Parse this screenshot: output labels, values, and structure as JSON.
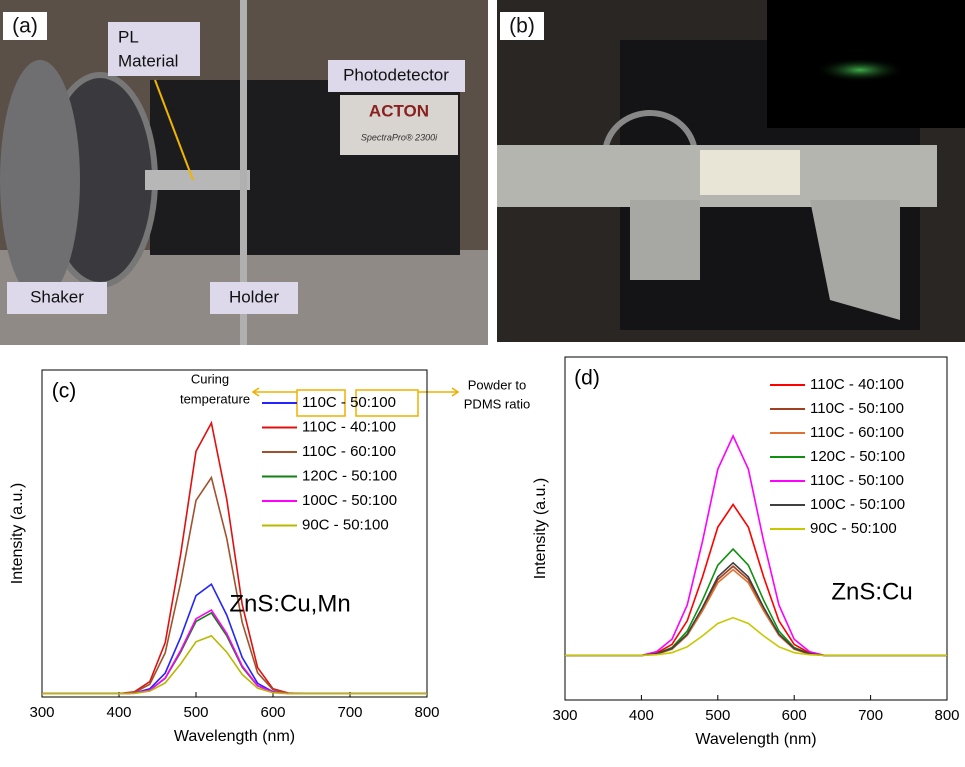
{
  "photos": [
    {
      "panel": "(a)",
      "labels": [
        "PL",
        "Material",
        "Photodetector",
        "Shaker",
        "Holder"
      ],
      "brand": [
        "ACTON",
        "SpectraPro® 2300i"
      ]
    },
    {
      "panel": "(b)"
    }
  ],
  "chart_data": [
    {
      "type": "line",
      "panel": "(c)",
      "sample": "ZnS:Cu,Mn",
      "annotations": [
        "Curing",
        "temperature",
        "Powder to",
        "PDMS ratio"
      ],
      "x_label": "Wavelength (nm)",
      "y_label": "Intensity (a.u.)",
      "xlim": [
        300,
        800
      ],
      "xticks": [
        300,
        400,
        500,
        600,
        700,
        800
      ],
      "ylim": [
        0,
        100
      ],
      "legend": "upper right",
      "x": [
        300,
        320,
        340,
        360,
        380,
        400,
        420,
        440,
        460,
        480,
        500,
        520,
        540,
        560,
        580,
        600,
        620,
        640,
        660,
        680,
        700,
        720,
        740,
        760,
        780,
        800
      ],
      "series": [
        {
          "name": "110C - 50:100",
          "color": "#2424ff",
          "values": [
            1,
            1,
            1,
            1,
            1,
            1,
            1.2,
            2.5,
            7.3,
            18.2,
            31.0,
            34.5,
            25.0,
            12.1,
            4.2,
            1.6,
            1.1,
            1,
            1,
            1,
            1,
            1,
            1,
            1,
            1,
            1
          ]
        },
        {
          "name": "110C - 40:100",
          "color": "#e01010",
          "values": [
            1,
            1,
            1,
            1,
            1,
            1,
            1.6,
            4.7,
            16.6,
            43.5,
            75.1,
            83.8,
            60.4,
            28.3,
            9.0,
            2.5,
            1.2,
            1,
            1,
            1,
            1,
            1,
            1,
            1,
            1,
            1
          ]
        },
        {
          "name": "110C - 60:100",
          "color": "#a0522d",
          "values": [
            1,
            1,
            1,
            1,
            1,
            1,
            1.4,
            3.9,
            13.5,
            34.9,
            60.1,
            67.1,
            48.4,
            22.8,
            7.4,
            2.2,
            1.1,
            1,
            1,
            1,
            1,
            1,
            1,
            1,
            1,
            1
          ]
        },
        {
          "name": "120C - 50:100",
          "color": "#108010",
          "values": [
            1,
            1,
            1,
            1,
            1,
            1,
            1.2,
            2.1,
            5.7,
            13.7,
            23.1,
            25.7,
            18.7,
            9.1,
            3.4,
            1.5,
            1.1,
            1,
            1,
            1,
            1,
            1,
            1,
            1,
            1,
            1
          ]
        },
        {
          "name": "100C - 50:100",
          "color": "#ff00ff",
          "values": [
            1,
            1,
            1,
            1,
            1,
            1,
            1.2,
            2.1,
            5.8,
            14.2,
            23.9,
            26.6,
            19.4,
            9.5,
            3.5,
            1.5,
            1.1,
            1,
            1,
            1,
            1,
            1,
            1,
            1,
            1,
            1
          ]
        },
        {
          "name": "90C - 50:100",
          "color": "#b8b800",
          "values": [
            1,
            1,
            1,
            1,
            1,
            1,
            1.1,
            1.8,
            4.3,
            10.1,
            16.9,
            18.7,
            13.7,
            6.9,
            2.7,
            1.3,
            1.0,
            1,
            1,
            1,
            1,
            1,
            1,
            1,
            1,
            1
          ]
        }
      ]
    },
    {
      "type": "line",
      "panel": "(d)",
      "sample": "ZnS:Cu",
      "x_label": "Wavelength (nm)",
      "y_label": "Intensity (a.u.)",
      "xlim": [
        300,
        800
      ],
      "xticks": [
        300,
        400,
        500,
        600,
        700,
        800
      ],
      "ylim": [
        0,
        100
      ],
      "legend": "upper right",
      "x": [
        300,
        320,
        340,
        360,
        380,
        400,
        420,
        440,
        460,
        480,
        500,
        520,
        540,
        560,
        580,
        600,
        620,
        640,
        660,
        680,
        700,
        720,
        740,
        760,
        780,
        800
      ],
      "series": [
        {
          "name": "110C - 40:100",
          "color": "#ff0000",
          "values": [
            13,
            13,
            13,
            13,
            13,
            13,
            13.7,
            16.2,
            23.1,
            35.9,
            50.4,
            57,
            50.4,
            35.9,
            23.1,
            16.2,
            13.7,
            13,
            13,
            13,
            13,
            13,
            13,
            13,
            13,
            13
          ]
        },
        {
          "name": "110C - 50:100",
          "color": "#a04020",
          "values": [
            13,
            13,
            13,
            13,
            13,
            13,
            13.4,
            14.9,
            19.0,
            26.5,
            35.1,
            39,
            35.1,
            26.5,
            19.0,
            14.9,
            13.4,
            13,
            13,
            13,
            13,
            13,
            13,
            13,
            13,
            13
          ]
        },
        {
          "name": "110C - 60:100",
          "color": "#e07030",
          "values": [
            13,
            13,
            13,
            13,
            13,
            13,
            13.4,
            14.8,
            18.8,
            26.0,
            34.2,
            38,
            34.2,
            26.0,
            18.8,
            14.8,
            13.4,
            13,
            13,
            13,
            13,
            13,
            13,
            13,
            13,
            13
          ]
        },
        {
          "name": "120C - 50:100",
          "color": "#109010",
          "values": [
            13,
            13,
            13,
            13,
            13,
            13,
            13.5,
            15.3,
            20.1,
            29.1,
            39.3,
            44,
            39.3,
            29.1,
            20.1,
            15.3,
            13.5,
            13,
            13,
            13,
            13,
            13,
            13,
            13,
            13,
            13
          ]
        },
        {
          "name": "110C - 50:100",
          "color": "#ff00ff",
          "values": [
            13,
            13,
            13,
            13,
            13,
            13,
            14.1,
            17.7,
            27.7,
            46.3,
            67.3,
            77,
            67.3,
            46.3,
            27.7,
            17.7,
            14.1,
            13,
            13,
            13,
            13,
            13,
            13,
            13,
            13,
            13
          ]
        },
        {
          "name": "100C - 50:100",
          "color": "#404040",
          "values": [
            13,
            13,
            13,
            13,
            13,
            13,
            13.5,
            15.0,
            19.2,
            27.0,
            35.9,
            40,
            35.9,
            27.0,
            19.2,
            15.0,
            13.5,
            13,
            13,
            13,
            13,
            13,
            13,
            13,
            13,
            13
          ]
        },
        {
          "name": "90C - 50:100",
          "color": "#c8c800",
          "values": [
            13,
            13,
            13,
            13,
            13,
            13,
            13.2,
            13.8,
            15.5,
            18.7,
            22.3,
            24,
            22.3,
            18.7,
            15.5,
            13.8,
            13.2,
            13,
            13,
            13,
            13,
            13,
            13,
            13,
            13,
            13
          ]
        }
      ]
    }
  ]
}
